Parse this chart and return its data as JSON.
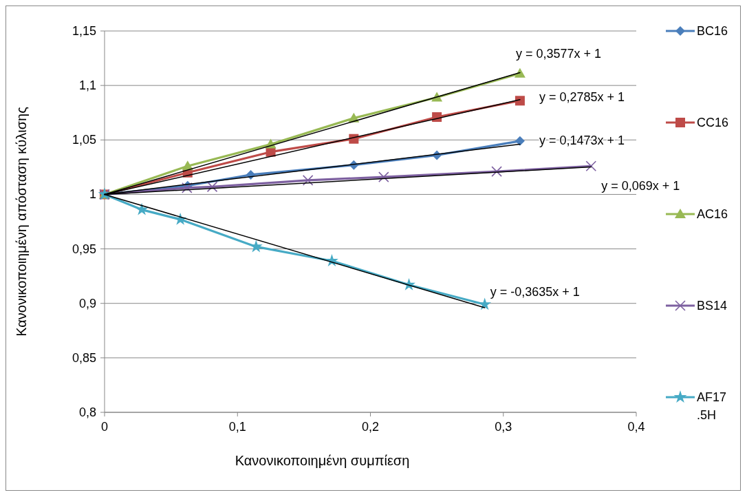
{
  "chart_data": {
    "type": "line",
    "xlabel": "Κανονικοποιημένη συμπίεση",
    "ylabel": "Κανονικοποιημένη απόσταση κύλισης",
    "xlim": [
      0,
      0.4
    ],
    "ylim": [
      0.8,
      1.15
    ],
    "xticks": [
      0,
      {
        "value": 0.1,
        "label": "0,1"
      },
      {
        "value": 0.2,
        "label": "0,2"
      },
      {
        "value": 0.3,
        "label": "0,3"
      },
      {
        "value": 0.4,
        "label": "0,4"
      }
    ],
    "yticks": [
      {
        "value": 0.8,
        "label": "0,8"
      },
      {
        "value": 0.85,
        "label": "0,85"
      },
      {
        "value": 0.9,
        "label": "0,9"
      },
      {
        "value": 0.95,
        "label": "0,95"
      },
      1,
      {
        "value": 1.05,
        "label": "1,05"
      },
      {
        "value": 1.1,
        "label": "1,1"
      },
      {
        "value": 1.15,
        "label": "1,15"
      }
    ],
    "grid": "y",
    "legend": "right",
    "series": [
      {
        "name": "BC16",
        "color": "#4a7ebb",
        "marker": "diamond",
        "x": [
          0,
          0.0625,
          0.11,
          0.1875,
          0.25,
          0.3125
        ],
        "values": [
          1,
          1.008,
          1.018,
          1.027,
          1.036,
          1.049
        ]
      },
      {
        "name": "CC16",
        "color": "#be4b48",
        "marker": "square",
        "x": [
          0,
          0.0625,
          0.125,
          0.1875,
          0.25,
          0.3125
        ],
        "values": [
          1,
          1.02,
          1.039,
          1.051,
          1.071,
          1.086
        ]
      },
      {
        "name": "AC16",
        "color": "#98b954",
        "marker": "triangle",
        "x": [
          0,
          0.0625,
          0.125,
          0.1875,
          0.25,
          0.3125
        ],
        "values": [
          1,
          1.026,
          1.046,
          1.07,
          1.089,
          1.111
        ]
      },
      {
        "name": "BS14",
        "color": "#7d60a0",
        "marker": "cross",
        "x": [
          0,
          0.062,
          0.081,
          0.153,
          0.21,
          0.295,
          0.366
        ],
        "values": [
          1,
          1.006,
          1.007,
          1.013,
          1.016,
          1.021,
          1.026
        ]
      },
      {
        "name": "AF17.5H",
        "color": "#46aac5",
        "marker": "star",
        "x": [
          0,
          0.028,
          0.057,
          0.114,
          0.171,
          0.229,
          0.286
        ],
        "values": [
          1,
          0.986,
          0.977,
          0.952,
          0.939,
          0.917,
          0.899
        ]
      },
      {
        "type": "line",
        "color": "#000000",
        "marker": "none",
        "x": [
          0,
          0.3125
        ],
        "values": [
          1,
          1.1118
        ]
      },
      {
        "type": "line",
        "color": "#000000",
        "marker": "none",
        "x": [
          0,
          0.3125
        ],
        "values": [
          1,
          1.087
        ]
      },
      {
        "type": "line",
        "color": "#000000",
        "marker": "none",
        "x": [
          0,
          0.3125
        ],
        "values": [
          1,
          1.0461
        ]
      },
      {
        "type": "line",
        "color": "#000000",
        "marker": "none",
        "x": [
          0,
          0.366
        ],
        "values": [
          1,
          1.0253
        ]
      },
      {
        "type": "line",
        "color": "#000000",
        "marker": "none",
        "x": [
          0,
          0.286
        ],
        "values": [
          1,
          0.896
        ]
      }
    ],
    "annotations": [
      "y = 0,3577x + 1",
      "y = 0,2785x + 1",
      "y = 0,1473x + 1",
      "y = 0,069x + 1",
      "y = -0,3635x + 1"
    ]
  }
}
